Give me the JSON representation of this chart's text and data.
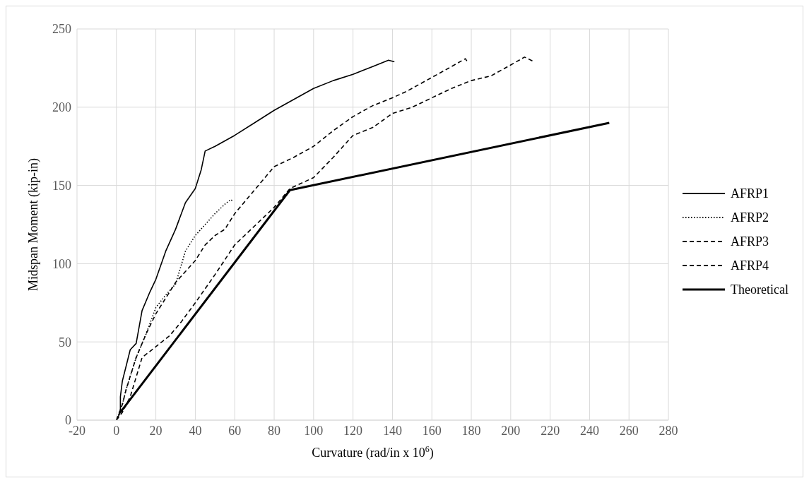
{
  "chart_data": {
    "type": "line",
    "xlabel": "Curvature (rad/in x 10$^{6}$)",
    "ylabel": "Midspan Moment (kip-in)",
    "xlim": [
      -20,
      280
    ],
    "xticks": [
      -20,
      0,
      20,
      40,
      60,
      80,
      100,
      120,
      140,
      160,
      180,
      200,
      220,
      240,
      260,
      280
    ],
    "ylim": [
      0,
      250
    ],
    "yticks": [
      0,
      50,
      100,
      150,
      200,
      250
    ],
    "grid": true,
    "legend": "right",
    "marker": "none",
    "series": [
      {
        "name": "AFRP1",
        "color": "#000000",
        "line_style": "solid",
        "x": [
          0,
          2,
          2,
          3,
          5,
          7,
          10,
          13,
          17,
          20,
          25,
          30,
          35,
          40,
          43,
          45,
          50,
          60,
          70,
          80,
          90,
          100,
          110,
          120,
          130,
          138,
          141
        ],
        "values": [
          0,
          5,
          15,
          25,
          35,
          45,
          49,
          70,
          82,
          90,
          108,
          122,
          139,
          148,
          160,
          172,
          175,
          182,
          190,
          198,
          205,
          212,
          217,
          221,
          226,
          230,
          229
        ]
      },
      {
        "name": "AFRP2",
        "color": "#000000",
        "line_style": "dotted",
        "x": [
          0,
          3,
          5,
          10,
          15,
          20,
          25,
          30,
          35,
          40,
          45,
          50,
          55,
          58,
          59
        ],
        "values": [
          0,
          10,
          20,
          40,
          55,
          72,
          80,
          87,
          108,
          118,
          125,
          132,
          138,
          141,
          140
        ]
      },
      {
        "name": "AFRP3",
        "color": "#000000",
        "line_style": "dashed",
        "x": [
          0,
          3,
          5,
          10,
          15,
          20,
          25,
          30,
          35,
          40,
          45,
          50,
          55,
          60,
          70,
          80,
          90,
          100,
          110,
          120,
          130,
          140,
          147,
          160,
          170,
          177,
          178
        ],
        "values": [
          0,
          10,
          20,
          40,
          55,
          68,
          78,
          88,
          95,
          102,
          112,
          118,
          122,
          132,
          147,
          162,
          168,
          175,
          185,
          194,
          201,
          206,
          210,
          219,
          226,
          231,
          229
        ]
      },
      {
        "name": "AFRP4",
        "color": "#000000",
        "line_style": "dashed",
        "x": [
          0,
          3,
          7,
          13,
          20,
          27,
          33,
          40,
          50,
          60,
          70,
          80,
          88,
          100,
          110,
          120,
          130,
          140,
          150,
          160,
          170,
          180,
          190,
          200,
          207,
          212
        ],
        "values": [
          0,
          5,
          15,
          40,
          47,
          54,
          63,
          75,
          93,
          112,
          124,
          136,
          148,
          155,
          168,
          182,
          187,
          196,
          200,
          206,
          212,
          217,
          220,
          227,
          232,
          229
        ]
      },
      {
        "name": "Theoretical",
        "color": "#000000",
        "line_style": "solid",
        "x": [
          2,
          88,
          250
        ],
        "values": [
          5,
          147,
          190
        ]
      }
    ]
  }
}
